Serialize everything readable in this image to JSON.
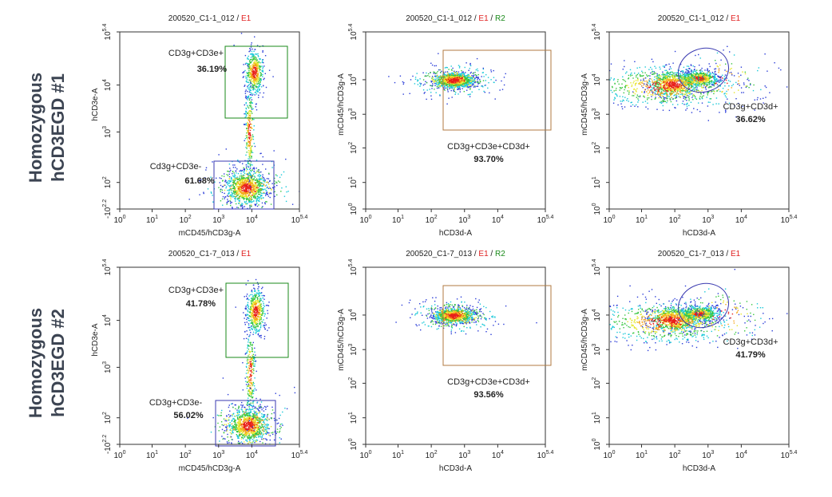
{
  "row_labels": [
    [
      "Homozygous",
      "hCD3EGD #1"
    ],
    [
      "Homozygous",
      "hCD3EGD #2"
    ]
  ],
  "panels": [
    {
      "title_parts": [
        "200520_C1-1_012",
        " / ",
        "E1"
      ],
      "title_colors": [
        "#222",
        "#222",
        "#e02020"
      ],
      "x_label": "mCD45/hCD3g-A",
      "y_label": "hCD3e-A",
      "x_ticks": [
        {
          "base": "10",
          "exp": "0"
        },
        {
          "base": "10",
          "exp": "1"
        },
        {
          "base": "10",
          "exp": "2"
        },
        {
          "base": "10",
          "exp": "3"
        },
        {
          "base": "10",
          "exp": "4"
        },
        {
          "base": "10",
          "exp": "5.4"
        }
      ],
      "y_ticks": [
        {
          "base": "-10",
          "exp": "2.2"
        },
        {
          "base": "10",
          "exp": "2"
        },
        {
          "base": "10",
          "exp": "3"
        },
        {
          "base": "10",
          "exp": "4"
        },
        {
          "base": "10",
          "exp": "5.4"
        }
      ],
      "gates": [
        {
          "name": "CD3g+CD3e+",
          "percent": "36.19%",
          "color": "#1a8a1a"
        },
        {
          "name": "Cd3g+CD3e-",
          "percent": "61.68%",
          "color": "#3a3ab0"
        }
      ]
    },
    {
      "title_parts": [
        "200520_C1-1_012",
        " / ",
        "E1",
        " / ",
        "R2"
      ],
      "title_colors": [
        "#222",
        "#222",
        "#e02020",
        "#222",
        "#1a8a1a"
      ],
      "x_label": "hCD3d-A",
      "y_label": "mCD45/hCD3g-A",
      "x_ticks": [
        {
          "base": "10",
          "exp": "0"
        },
        {
          "base": "10",
          "exp": "1"
        },
        {
          "base": "10",
          "exp": "2"
        },
        {
          "base": "10",
          "exp": "3"
        },
        {
          "base": "10",
          "exp": "4"
        },
        {
          "base": "10",
          "exp": "5.4"
        }
      ],
      "y_ticks": [
        {
          "base": "10",
          "exp": "0"
        },
        {
          "base": "10",
          "exp": "1"
        },
        {
          "base": "10",
          "exp": "2"
        },
        {
          "base": "10",
          "exp": "3"
        },
        {
          "base": "10",
          "exp": "4"
        },
        {
          "base": "10",
          "exp": "5.4"
        }
      ],
      "gates": [
        {
          "name": "CD3g+CD3e+CD3d+",
          "percent": "93.70%",
          "color": "#b07a40"
        }
      ]
    },
    {
      "title_parts": [
        "200520_C1-1_012",
        " / ",
        "E1"
      ],
      "title_colors": [
        "#222",
        "#222",
        "#e02020"
      ],
      "x_label": "hCD3d-A",
      "y_label": "mCD45/hCD3g-A",
      "x_ticks": [
        {
          "base": "10",
          "exp": "0"
        },
        {
          "base": "10",
          "exp": "1"
        },
        {
          "base": "10",
          "exp": "2"
        },
        {
          "base": "10",
          "exp": "3"
        },
        {
          "base": "10",
          "exp": "4"
        },
        {
          "base": "10",
          "exp": "5.4"
        }
      ],
      "y_ticks": [
        {
          "base": "10",
          "exp": "0"
        },
        {
          "base": "10",
          "exp": "1"
        },
        {
          "base": "10",
          "exp": "2"
        },
        {
          "base": "10",
          "exp": "3"
        },
        {
          "base": "10",
          "exp": "4"
        },
        {
          "base": "10",
          "exp": "5.4"
        }
      ],
      "gates": [
        {
          "name": "CD3g+CD3d+",
          "percent": "36.62%",
          "color": "#3a3ab0"
        }
      ]
    },
    {
      "title_parts": [
        "200520_C1-7_013",
        " / ",
        "E1"
      ],
      "title_colors": [
        "#222",
        "#222",
        "#e02020"
      ],
      "x_label": "mCD45/hCD3g-A",
      "y_label": "hCD3e-A",
      "x_ticks": [
        {
          "base": "10",
          "exp": "0"
        },
        {
          "base": "10",
          "exp": "1"
        },
        {
          "base": "10",
          "exp": "2"
        },
        {
          "base": "10",
          "exp": "3"
        },
        {
          "base": "10",
          "exp": "4"
        },
        {
          "base": "10",
          "exp": "5.4"
        }
      ],
      "y_ticks": [
        {
          "base": "-10",
          "exp": "2.2"
        },
        {
          "base": "10",
          "exp": "2"
        },
        {
          "base": "10",
          "exp": "3"
        },
        {
          "base": "10",
          "exp": "4"
        },
        {
          "base": "10",
          "exp": "5.4"
        }
      ],
      "gates": [
        {
          "name": "CD3g+CD3e+",
          "percent": "41.78%",
          "color": "#1a8a1a"
        },
        {
          "name": "CD3g+CD3e-",
          "percent": "56.02%",
          "color": "#3a3ab0"
        }
      ]
    },
    {
      "title_parts": [
        "200520_C1-7_013",
        " / ",
        "E1",
        " / ",
        "R2"
      ],
      "title_colors": [
        "#222",
        "#222",
        "#e02020",
        "#222",
        "#1a8a1a"
      ],
      "x_label": "hCD3d-A",
      "y_label": "mCD45/hCD3g-A",
      "x_ticks": [
        {
          "base": "10",
          "exp": "0"
        },
        {
          "base": "10",
          "exp": "1"
        },
        {
          "base": "10",
          "exp": "2"
        },
        {
          "base": "10",
          "exp": "3"
        },
        {
          "base": "10",
          "exp": "4"
        },
        {
          "base": "10",
          "exp": "5.4"
        }
      ],
      "y_ticks": [
        {
          "base": "10",
          "exp": "0"
        },
        {
          "base": "10",
          "exp": "1"
        },
        {
          "base": "10",
          "exp": "2"
        },
        {
          "base": "10",
          "exp": "3"
        },
        {
          "base": "10",
          "exp": "4"
        },
        {
          "base": "10",
          "exp": "5.4"
        }
      ],
      "gates": [
        {
          "name": "CD3g+CD3e+CD3d+",
          "percent": "93.56%",
          "color": "#b07a40"
        }
      ]
    },
    {
      "title_parts": [
        "200520_C1-7_013",
        " / ",
        "E1"
      ],
      "title_colors": [
        "#222",
        "#222",
        "#e02020"
      ],
      "x_label": "hCD3d-A",
      "y_label": "mCD45/hCD3g-A",
      "x_ticks": [
        {
          "base": "10",
          "exp": "0"
        },
        {
          "base": "10",
          "exp": "1"
        },
        {
          "base": "10",
          "exp": "2"
        },
        {
          "base": "10",
          "exp": "3"
        },
        {
          "base": "10",
          "exp": "4"
        },
        {
          "base": "10",
          "exp": "5.4"
        }
      ],
      "y_ticks": [
        {
          "base": "10",
          "exp": "0"
        },
        {
          "base": "10",
          "exp": "1"
        },
        {
          "base": "10",
          "exp": "2"
        },
        {
          "base": "10",
          "exp": "3"
        },
        {
          "base": "10",
          "exp": "4"
        },
        {
          "base": "10",
          "exp": "5.4"
        }
      ],
      "gates": [
        {
          "name": "CD3g+CD3d+",
          "percent": "41.79%",
          "color": "#3a3ab0"
        }
      ]
    }
  ]
}
